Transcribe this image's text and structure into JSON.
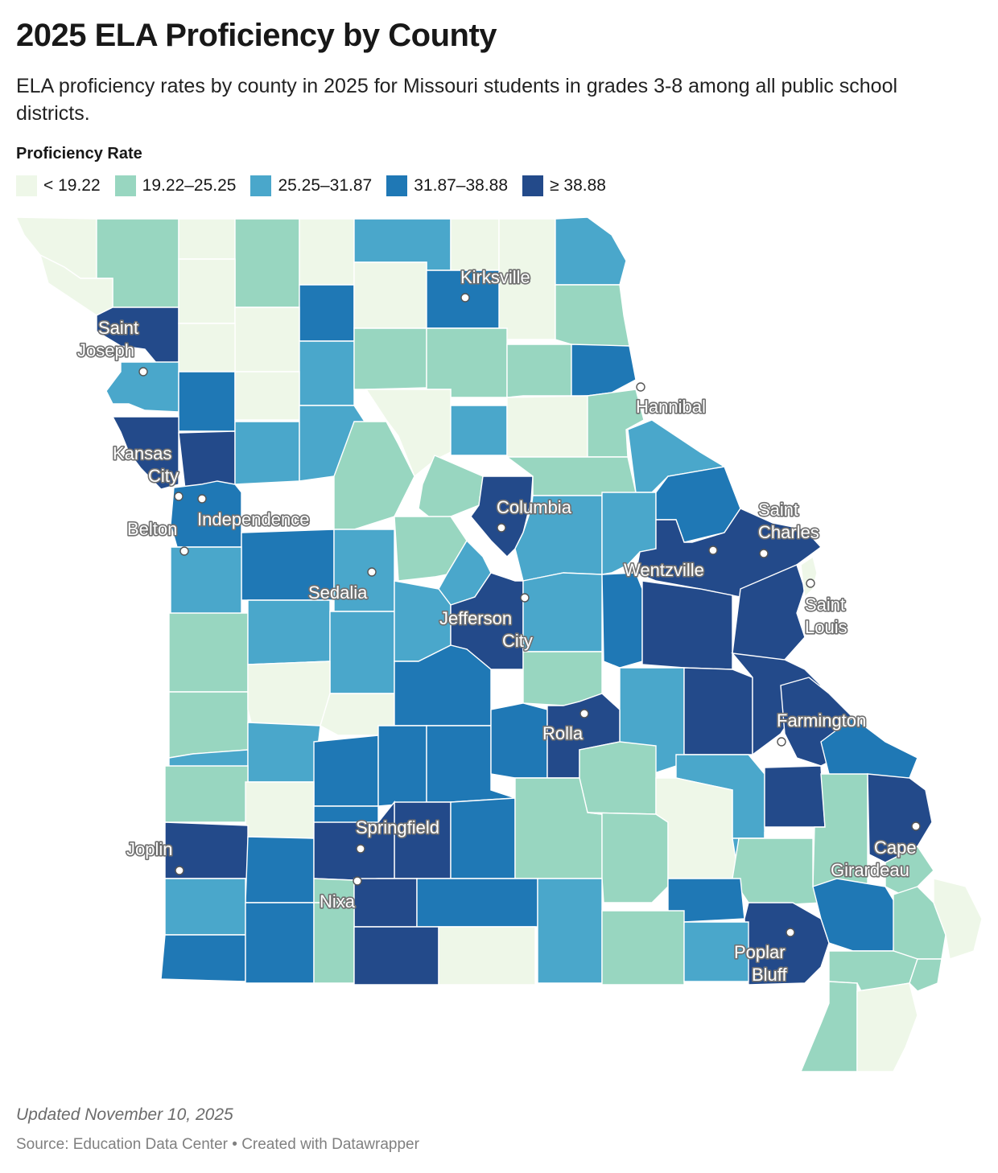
{
  "header": {
    "title": "2025 ELA Proficiency by County",
    "subtitle": "ELA proficiency rates by county in 2025 for Missouri students in grades 3-8 among all public school districts."
  },
  "legend": {
    "title": "Proficiency Rate",
    "bins": [
      {
        "label": "< 19.22",
        "color": "#eef7e8"
      },
      {
        "label": "19.22–25.25",
        "color": "#98d6c0"
      },
      {
        "label": "25.25–31.87",
        "color": "#4aa7cb"
      },
      {
        "label": "31.87–38.88",
        "color": "#1f78b5"
      },
      {
        "label": "≥ 38.88",
        "color": "#234a8a"
      }
    ]
  },
  "chart_data": {
    "type": "choropleth",
    "region": "Missouri counties",
    "value_label": "Proficiency Rate",
    "bins": [
      "< 19.22",
      "19.22–25.25",
      "25.25–31.87",
      "31.87–38.88",
      "≥ 38.88"
    ],
    "cities": [
      "Kirksville",
      "Saint Joseph",
      "Hannibal",
      "Kansas City",
      "Independence",
      "Belton",
      "Columbia",
      "Saint Charles",
      "Wentzville",
      "Saint Louis",
      "Sedalia",
      "Jefferson City",
      "Rolla",
      "Farmington",
      "Springfield",
      "Joplin",
      "Nixa",
      "Cape Girardeau",
      "Poplar Bluff"
    ]
  },
  "footer": {
    "updated": "Updated November 10, 2025",
    "source": "Source: Education Data Center • Created with Datawrapper"
  }
}
